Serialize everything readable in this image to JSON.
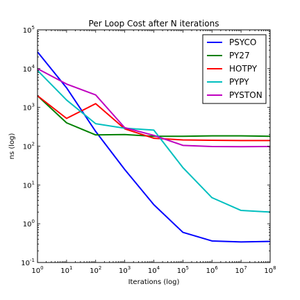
{
  "chart_data": {
    "type": "line",
    "title": "Per Loop Cost after N iterations",
    "xlabel": "Iterations (log)",
    "ylabel": "ns (log)",
    "x_scale": "log",
    "y_scale": "log",
    "xlim": [
      1,
      100000000
    ],
    "ylim": [
      0.1,
      100000
    ],
    "x": [
      1,
      10,
      100,
      1000,
      10000,
      100000,
      1000000,
      10000000,
      100000000
    ],
    "x_ticks": [
      {
        "base": "10",
        "exp": "0"
      },
      {
        "base": "10",
        "exp": "1"
      },
      {
        "base": "10",
        "exp": "2"
      },
      {
        "base": "10",
        "exp": "3"
      },
      {
        "base": "10",
        "exp": "4"
      },
      {
        "base": "10",
        "exp": "5"
      },
      {
        "base": "10",
        "exp": "6"
      },
      {
        "base": "10",
        "exp": "7"
      },
      {
        "base": "10",
        "exp": "8"
      }
    ],
    "y_ticks": [
      {
        "base": "10",
        "exp": "-1"
      },
      {
        "base": "10",
        "exp": "0"
      },
      {
        "base": "10",
        "exp": "1"
      },
      {
        "base": "10",
        "exp": "2"
      },
      {
        "base": "10",
        "exp": "3"
      },
      {
        "base": "10",
        "exp": "4"
      },
      {
        "base": "10",
        "exp": "5"
      }
    ],
    "grid": false,
    "legend_position": "top-right",
    "series": [
      {
        "name": "PSYCO",
        "color": "#0000ff",
        "values": [
          27000,
          3200,
          240,
          25,
          3.1,
          0.6,
          0.36,
          0.34,
          0.35
        ]
      },
      {
        "name": "PY27",
        "color": "#008000",
        "values": [
          2000,
          400,
          195,
          200,
          180,
          180,
          185,
          185,
          180
        ]
      },
      {
        "name": "HOTPY",
        "color": "#ff0000",
        "values": [
          2000,
          520,
          1250,
          280,
          160,
          145,
          142,
          140,
          140
        ]
      },
      {
        "name": "PYPY",
        "color": "#00bfbf",
        "values": [
          9000,
          1550,
          380,
          290,
          260,
          28,
          4.7,
          2.2,
          2.0
        ]
      },
      {
        "name": "PYSTON",
        "color": "#bf00bf",
        "values": [
          10000,
          4000,
          2100,
          300,
          190,
          105,
          98,
          97,
          98
        ]
      }
    ]
  }
}
